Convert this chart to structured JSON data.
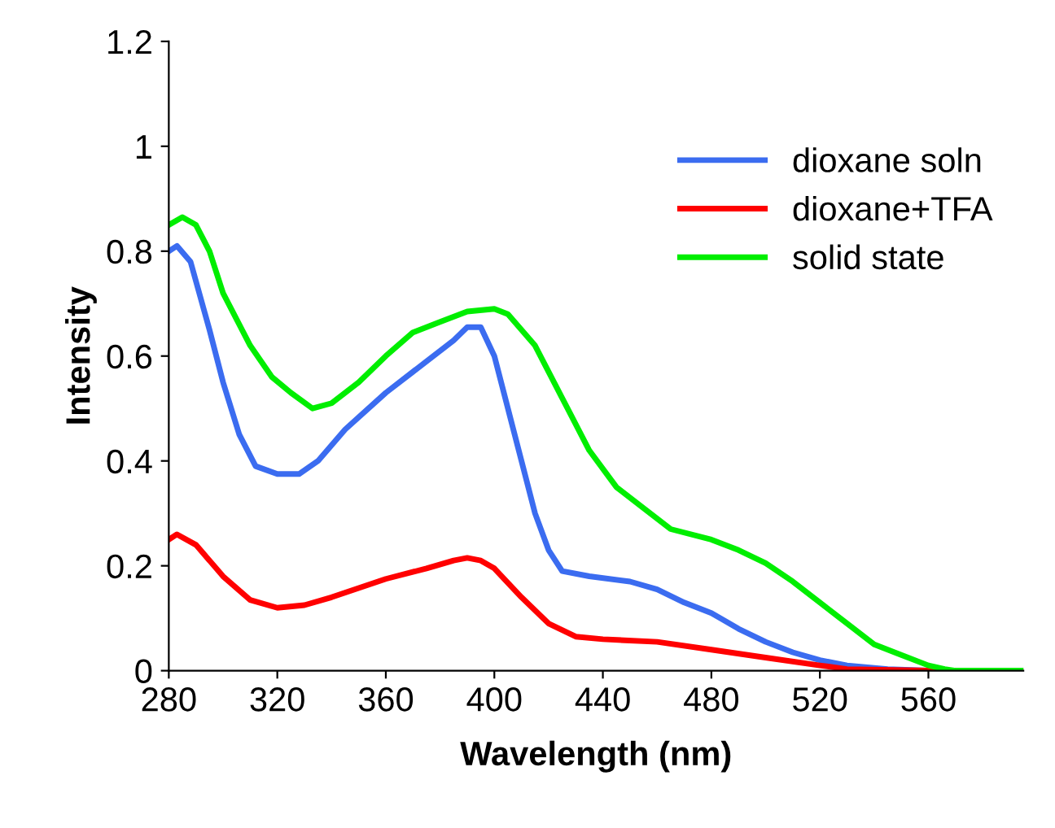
{
  "chart_data": {
    "type": "line",
    "xlabel": "Wavelength (nm)",
    "ylabel": "Intensity",
    "xlim": [
      280,
      595
    ],
    "xticks": [
      280,
      320,
      360,
      400,
      440,
      480,
      520,
      560
    ],
    "ylim": [
      0,
      1.2
    ],
    "yticks": [
      0,
      0.2,
      0.4,
      0.6,
      0.8,
      1,
      1.2
    ],
    "grid": false,
    "legend": "top right",
    "marker": "none",
    "line_style": "solid",
    "series": [
      {
        "name": "dioxane soln",
        "color": "#3b6cf0",
        "x": [
          280,
          283,
          288,
          295,
          300,
          306,
          312,
          320,
          328,
          335,
          345,
          360,
          375,
          385,
          390,
          395,
          400,
          405,
          410,
          415,
          420,
          425,
          435,
          450,
          460,
          470,
          480,
          490,
          500,
          510,
          520,
          530,
          545,
          560,
          595
        ],
        "values": [
          0.8,
          0.81,
          0.78,
          0.65,
          0.55,
          0.45,
          0.39,
          0.375,
          0.375,
          0.4,
          0.46,
          0.53,
          0.59,
          0.63,
          0.655,
          0.655,
          0.6,
          0.5,
          0.4,
          0.3,
          0.23,
          0.19,
          0.18,
          0.17,
          0.155,
          0.13,
          0.11,
          0.08,
          0.055,
          0.035,
          0.02,
          0.01,
          0.003,
          0,
          0
        ]
      },
      {
        "name": "dioxane+TFA",
        "color": "#ff0000",
        "x": [
          280,
          283,
          290,
          300,
          310,
          320,
          330,
          340,
          360,
          375,
          385,
          390,
          395,
          400,
          410,
          420,
          430,
          440,
          460,
          480,
          500,
          520,
          530,
          560,
          595
        ],
        "values": [
          0.25,
          0.26,
          0.24,
          0.18,
          0.135,
          0.12,
          0.125,
          0.14,
          0.175,
          0.195,
          0.21,
          0.215,
          0.21,
          0.195,
          0.14,
          0.09,
          0.065,
          0.06,
          0.055,
          0.04,
          0.025,
          0.01,
          0.003,
          0,
          0
        ]
      },
      {
        "name": "solid state",
        "color": "#00ee00",
        "x": [
          280,
          285,
          290,
          295,
          300,
          310,
          318,
          325,
          333,
          340,
          350,
          360,
          370,
          380,
          390,
          400,
          405,
          415,
          425,
          435,
          445,
          455,
          465,
          480,
          490,
          500,
          510,
          520,
          530,
          540,
          550,
          560,
          566,
          570,
          595
        ],
        "values": [
          0.85,
          0.865,
          0.85,
          0.8,
          0.72,
          0.62,
          0.56,
          0.53,
          0.5,
          0.51,
          0.55,
          0.6,
          0.645,
          0.665,
          0.685,
          0.69,
          0.68,
          0.62,
          0.52,
          0.42,
          0.35,
          0.31,
          0.27,
          0.25,
          0.23,
          0.205,
          0.17,
          0.13,
          0.09,
          0.05,
          0.03,
          0.01,
          0.003,
          0,
          0
        ]
      }
    ]
  }
}
